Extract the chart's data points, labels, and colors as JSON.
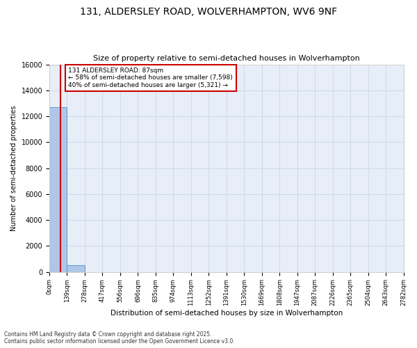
{
  "title": "131, ALDERSLEY ROAD, WOLVERHAMPTON, WV6 9NF",
  "subtitle": "Size of property relative to semi-detached houses in Wolverhampton",
  "ylabel": "Number of semi-detached properties",
  "xlabel": "Distribution of semi-detached houses by size in Wolverhampton",
  "footnote": "Contains HM Land Registry data © Crown copyright and database right 2025.\nContains public sector information licensed under the Open Government Licence v3.0.",
  "property_size": 87,
  "property_label": "131 ALDERSLEY ROAD: 87sqm",
  "pct_smaller": 58,
  "count_smaller": 7598,
  "pct_larger": 40,
  "count_larger": 5321,
  "bin_edges": [
    0,
    139,
    278,
    417,
    556,
    696,
    835,
    974,
    1113,
    1252,
    1391,
    1530,
    1669,
    1808,
    1947,
    2087,
    2226,
    2365,
    2504,
    2643,
    2782
  ],
  "bar_heights": [
    12700,
    500,
    0,
    0,
    0,
    0,
    0,
    0,
    0,
    0,
    0,
    0,
    0,
    0,
    0,
    0,
    0,
    0,
    0,
    0
  ],
  "bar_color": "#aec6e8",
  "bar_edge_color": "#5b9bd5",
  "grid_color": "#d0d8e8",
  "bg_color": "#e8eef8",
  "annotation_box_color": "#cc0000",
  "vline_color": "#cc0000",
  "ylim": [
    0,
    16000
  ],
  "yticks": [
    0,
    2000,
    4000,
    6000,
    8000,
    10000,
    12000,
    14000,
    16000
  ]
}
